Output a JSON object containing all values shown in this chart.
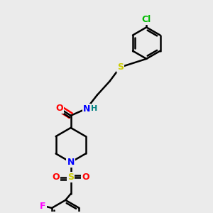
{
  "background_color": "#ebebeb",
  "bond_color": "#000000",
  "bond_width": 1.8,
  "atom_colors": {
    "O": "#ff0000",
    "N": "#0000ff",
    "S": "#cccc00",
    "Cl": "#00bb00",
    "F": "#ff00ff",
    "H": "#008080",
    "C": "#000000"
  },
  "figsize": [
    3.0,
    3.0
  ],
  "dpi": 100,
  "xlim": [
    0,
    10
  ],
  "ylim": [
    0,
    10
  ]
}
